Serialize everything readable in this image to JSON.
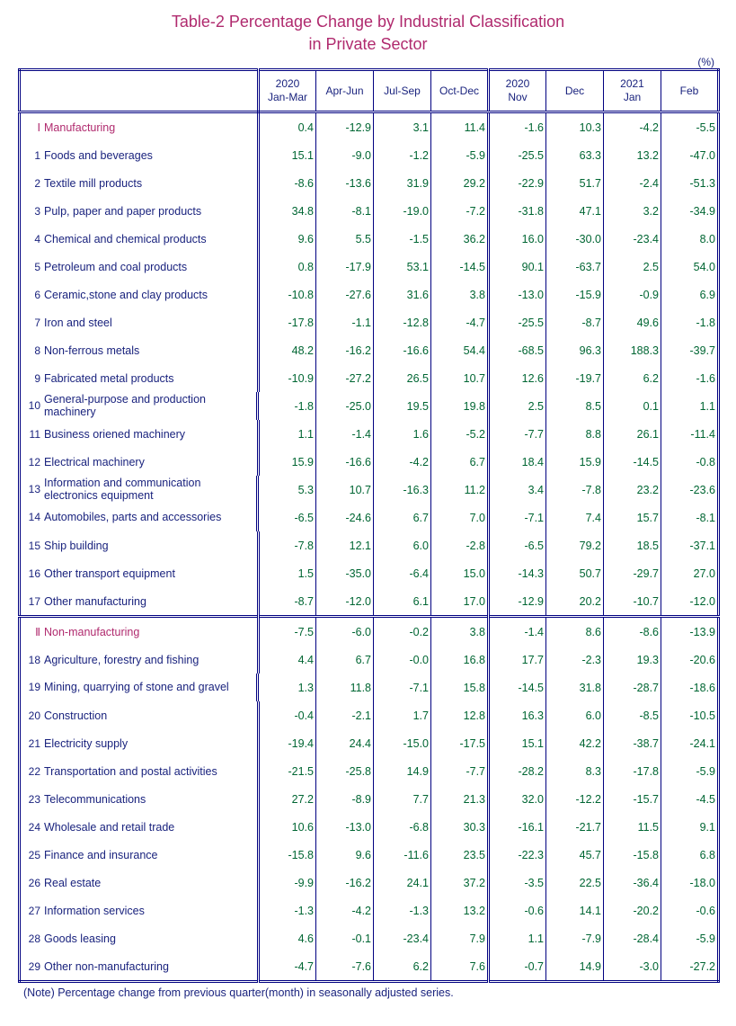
{
  "title_line1": "Table-2   Percentage Change by Industrial Classification",
  "title_line2": "in Private Sector",
  "unit_label": "(%)",
  "note": "(Note)    Percentage change from previous quarter(month) in seasonally adjusted series.",
  "columns": [
    {
      "line1": "2020",
      "line2": "Jan-Mar"
    },
    {
      "line1": "",
      "line2": "Apr-Jun"
    },
    {
      "line1": "",
      "line2": "Jul-Sep"
    },
    {
      "line1": "",
      "line2": "Oct-Dec"
    },
    {
      "line1": "2020",
      "line2": "Nov"
    },
    {
      "line1": "",
      "line2": "Dec"
    },
    {
      "line1": "2021",
      "line2": "Jan"
    },
    {
      "line1": "",
      "line2": "Feb"
    }
  ],
  "group_split_after": 4,
  "colors": {
    "title": "#b02a6e",
    "header_text": "#1a237e",
    "label_text": "#1a237e",
    "value_text": "#006633",
    "border": "#000080",
    "background": "#ffffff"
  },
  "col_widths": {
    "label": 266,
    "data": 64
  },
  "rows": [
    {
      "section": true,
      "idx": "Ⅰ",
      "label": "Manufacturing",
      "vals": [
        "0.4",
        "-12.9",
        "3.1",
        "11.4",
        "-1.6",
        "10.3",
        "-4.2",
        "-5.5"
      ]
    },
    {
      "idx": "1",
      "label": "Foods and beverages",
      "vals": [
        "15.1",
        "-9.0",
        "-1.2",
        "-5.9",
        "-25.5",
        "63.3",
        "13.2",
        "-47.0"
      ]
    },
    {
      "idx": "2",
      "label": "Textile mill products",
      "vals": [
        "-8.6",
        "-13.6",
        "31.9",
        "29.2",
        "-22.9",
        "51.7",
        "-2.4",
        "-51.3"
      ]
    },
    {
      "idx": "3",
      "label": "Pulp, paper and paper products",
      "vals": [
        "34.8",
        "-8.1",
        "-19.0",
        "-7.2",
        "-31.8",
        "47.1",
        "3.2",
        "-34.9"
      ]
    },
    {
      "idx": "4",
      "label": "Chemical and chemical products",
      "vals": [
        "9.6",
        "5.5",
        "-1.5",
        "36.2",
        "16.0",
        "-30.0",
        "-23.4",
        "8.0"
      ]
    },
    {
      "idx": "5",
      "label": "Petroleum and coal products",
      "vals": [
        "0.8",
        "-17.9",
        "53.1",
        "-14.5",
        "90.1",
        "-63.7",
        "2.5",
        "54.0"
      ]
    },
    {
      "idx": "6",
      "label": "Ceramic,stone and clay products",
      "vals": [
        "-10.8",
        "-27.6",
        "31.6",
        "3.8",
        "-13.0",
        "-15.9",
        "-0.9",
        "6.9"
      ]
    },
    {
      "idx": "7",
      "label": "Iron and steel",
      "vals": [
        "-17.8",
        "-1.1",
        "-12.8",
        "-4.7",
        "-25.5",
        "-8.7",
        "49.6",
        "-1.8"
      ]
    },
    {
      "idx": "8",
      "label": "Non-ferrous metals",
      "vals": [
        "48.2",
        "-16.2",
        "-16.6",
        "54.4",
        "-68.5",
        "96.3",
        "188.3",
        "-39.7"
      ]
    },
    {
      "idx": "9",
      "label": "Fabricated metal products",
      "vals": [
        "-10.9",
        "-27.2",
        "26.5",
        "10.7",
        "12.6",
        "-19.7",
        "6.2",
        "-1.6"
      ]
    },
    {
      "idx": "10",
      "label": "General-purpose and production machinery",
      "wrap": true,
      "vals": [
        "-1.8",
        "-25.0",
        "19.5",
        "19.8",
        "2.5",
        "8.5",
        "0.1",
        "1.1"
      ]
    },
    {
      "idx": "11",
      "label": "Business oriened machinery",
      "vals": [
        "1.1",
        "-1.4",
        "1.6",
        "-5.2",
        "-7.7",
        "8.8",
        "26.1",
        "-11.4"
      ]
    },
    {
      "idx": "12",
      "label": "Electrical machinery",
      "vals": [
        "15.9",
        "-16.6",
        "-4.2",
        "6.7",
        "18.4",
        "15.9",
        "-14.5",
        "-0.8"
      ]
    },
    {
      "idx": "13",
      "label": "Information and communication electronics equipment",
      "wrap": true,
      "vals": [
        "5.3",
        "10.7",
        "-16.3",
        "11.2",
        "3.4",
        "-7.8",
        "23.2",
        "-23.6"
      ]
    },
    {
      "idx": "14",
      "label": "Automobiles, parts and accessories",
      "wrap": true,
      "vals": [
        "-6.5",
        "-24.6",
        "6.7",
        "7.0",
        "-7.1",
        "7.4",
        "15.7",
        "-8.1"
      ]
    },
    {
      "idx": "15",
      "label": "Ship building",
      "vals": [
        "-7.8",
        "12.1",
        "6.0",
        "-2.8",
        "-6.5",
        "79.2",
        "18.5",
        "-37.1"
      ]
    },
    {
      "idx": "16",
      "label": "Other transport equipment",
      "vals": [
        "1.5",
        "-35.0",
        "-6.4",
        "15.0",
        "-14.3",
        "50.7",
        "-29.7",
        "27.0"
      ]
    },
    {
      "idx": "17",
      "label": "Other manufacturing",
      "vals": [
        "-8.7",
        "-12.0",
        "6.1",
        "17.0",
        "-12.9",
        "20.2",
        "-10.7",
        "-12.0"
      ]
    },
    {
      "section": true,
      "idx": "Ⅱ",
      "label": "Non-manufacturing",
      "vals": [
        "-7.5",
        "-6.0",
        "-0.2",
        "3.8",
        "-1.4",
        "8.6",
        "-8.6",
        "-13.9"
      ]
    },
    {
      "idx": "18",
      "label": "Agriculture, forestry and fishing",
      "vals": [
        "4.4",
        "6.7",
        "-0.0",
        "16.8",
        "17.7",
        "-2.3",
        "19.3",
        "-20.6"
      ]
    },
    {
      "idx": "19",
      "label": "Mining, quarrying of stone and gravel",
      "wrap": true,
      "vals": [
        "1.3",
        "11.8",
        "-7.1",
        "15.8",
        "-14.5",
        "31.8",
        "-28.7",
        "-18.6"
      ]
    },
    {
      "idx": "20",
      "label": "Construction",
      "vals": [
        "-0.4",
        "-2.1",
        "1.7",
        "12.8",
        "16.3",
        "6.0",
        "-8.5",
        "-10.5"
      ]
    },
    {
      "idx": "21",
      "label": "Electricity supply",
      "vals": [
        "-19.4",
        "24.4",
        "-15.0",
        "-17.5",
        "15.1",
        "42.2",
        "-38.7",
        "-24.1"
      ]
    },
    {
      "idx": "22",
      "label": "Transportation and postal activities",
      "vals": [
        "-21.5",
        "-25.8",
        "14.9",
        "-7.7",
        "-28.2",
        "8.3",
        "-17.8",
        "-5.9"
      ]
    },
    {
      "idx": "23",
      "label": "Telecommunications",
      "vals": [
        "27.2",
        "-8.9",
        "7.7",
        "21.3",
        "32.0",
        "-12.2",
        "-15.7",
        "-4.5"
      ]
    },
    {
      "idx": "24",
      "label": "Wholesale and retail trade",
      "vals": [
        "10.6",
        "-13.0",
        "-6.8",
        "30.3",
        "-16.1",
        "-21.7",
        "11.5",
        "9.1"
      ]
    },
    {
      "idx": "25",
      "label": "Finance and insurance",
      "vals": [
        "-15.8",
        "9.6",
        "-11.6",
        "23.5",
        "-22.3",
        "45.7",
        "-15.8",
        "6.8"
      ]
    },
    {
      "idx": "26",
      "label": "Real estate",
      "vals": [
        "-9.9",
        "-16.2",
        "24.1",
        "37.2",
        "-3.5",
        "22.5",
        "-36.4",
        "-18.0"
      ]
    },
    {
      "idx": "27",
      "label": "Information services",
      "vals": [
        "-1.3",
        "-4.2",
        "-1.3",
        "13.2",
        "-0.6",
        "14.1",
        "-20.2",
        "-0.6"
      ]
    },
    {
      "idx": "28",
      "label": "Goods leasing",
      "vals": [
        "4.6",
        "-0.1",
        "-23.4",
        "7.9",
        "1.1",
        "-7.9",
        "-28.4",
        "-5.9"
      ]
    },
    {
      "idx": "29",
      "label": "Other non-manufacturing",
      "vals": [
        "-4.7",
        "-7.6",
        "6.2",
        "7.6",
        "-0.7",
        "14.9",
        "-3.0",
        "-27.2"
      ]
    }
  ]
}
